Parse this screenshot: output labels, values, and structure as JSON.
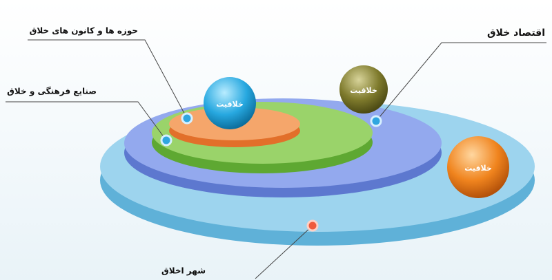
{
  "labels": {
    "creative_centers": "حوزه ها و کانون های خلاق",
    "creative_industries": "صنایع فرهنگی و خلاق",
    "creative_economy": "اقتصاد خلاق",
    "creative_city": "شهر اخلاق"
  },
  "spheres": [
    {
      "label": "خلاقیت"
    },
    {
      "label": "خلاقیت"
    },
    {
      "label": "خلاقیت"
    }
  ]
}
